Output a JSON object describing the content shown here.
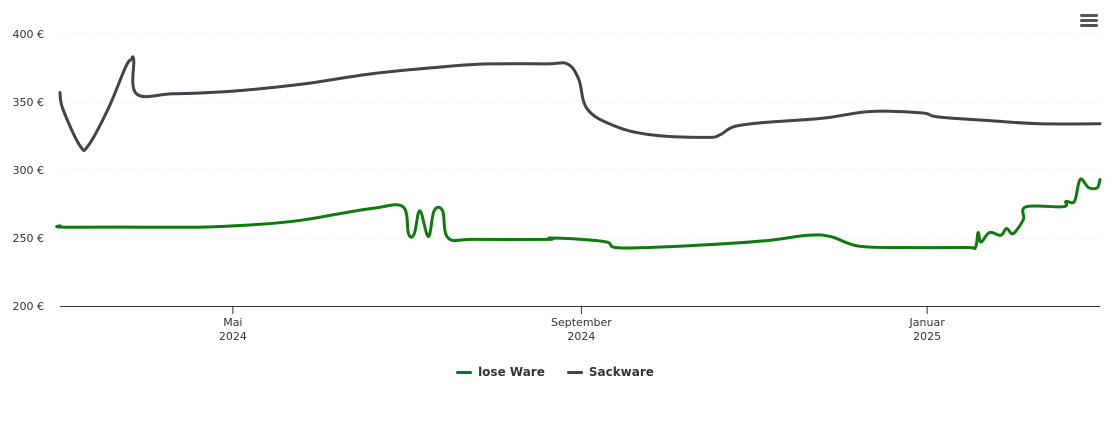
{
  "chart_data": {
    "type": "line",
    "title": "",
    "xlabel": "",
    "ylabel": "",
    "ylim": [
      200,
      400
    ],
    "y_ticks": [
      "200 €",
      "250 €",
      "300 €",
      "350 €",
      "400 €"
    ],
    "x_ticks": [
      {
        "date": "2024-05-01",
        "month": "Mai",
        "year": "2024"
      },
      {
        "date": "2024-09-01",
        "month": "September",
        "year": "2024"
      },
      {
        "date": "2025-01-01",
        "month": "Januar",
        "year": "2025"
      }
    ],
    "xlim": [
      "2024-03-01",
      "2025-03-03"
    ],
    "grid": true,
    "legend_position": "bottom-center",
    "series": [
      {
        "name": "lose Ware",
        "color": "#0f7a0f",
        "points": [
          [
            "2024-03-01",
            259
          ],
          [
            "2024-03-02",
            258
          ],
          [
            "2024-03-25",
            258
          ],
          [
            "2024-04-20",
            258
          ],
          [
            "2024-05-10",
            260
          ],
          [
            "2024-05-25",
            263
          ],
          [
            "2024-06-08",
            268
          ],
          [
            "2024-06-20",
            272
          ],
          [
            "2024-06-30",
            273
          ],
          [
            "2024-07-02",
            253
          ],
          [
            "2024-07-04",
            253
          ],
          [
            "2024-07-06",
            270
          ],
          [
            "2024-07-09",
            251
          ],
          [
            "2024-07-11",
            270
          ],
          [
            "2024-07-14",
            270
          ],
          [
            "2024-07-16",
            250
          ],
          [
            "2024-07-25",
            249
          ],
          [
            "2024-08-20",
            249
          ],
          [
            "2024-08-21",
            250
          ],
          [
            "2024-09-01",
            249
          ],
          [
            "2024-09-10",
            247
          ],
          [
            "2024-09-13",
            243
          ],
          [
            "2024-09-25",
            243
          ],
          [
            "2024-10-15",
            245
          ],
          [
            "2024-11-05",
            248
          ],
          [
            "2024-11-20",
            252
          ],
          [
            "2024-11-28",
            251
          ],
          [
            "2024-12-08",
            244
          ],
          [
            "2024-12-25",
            243
          ],
          [
            "2025-01-15",
            243
          ],
          [
            "2025-01-18",
            243
          ],
          [
            "2025-01-19",
            254
          ],
          [
            "2025-01-20",
            247
          ],
          [
            "2025-01-23",
            254
          ],
          [
            "2025-01-27",
            252
          ],
          [
            "2025-01-29",
            257
          ],
          [
            "2025-01-31",
            253
          ],
          [
            "2025-02-02",
            257
          ],
          [
            "2025-02-04",
            264
          ],
          [
            "2025-02-05",
            273
          ],
          [
            "2025-02-18",
            273
          ],
          [
            "2025-02-19",
            277
          ],
          [
            "2025-02-22",
            277
          ],
          [
            "2025-02-24",
            293
          ],
          [
            "2025-02-27",
            287
          ],
          [
            "2025-03-02",
            287
          ],
          [
            "2025-03-03",
            293
          ]
        ]
      },
      {
        "name": "Sackware",
        "color": "#434348",
        "points": [
          [
            "2024-03-01",
            357
          ],
          [
            "2024-03-02",
            345
          ],
          [
            "2024-03-08",
            318
          ],
          [
            "2024-03-11",
            318
          ],
          [
            "2024-03-18",
            345
          ],
          [
            "2024-03-24",
            375
          ],
          [
            "2024-03-26",
            381
          ],
          [
            "2024-03-27",
            381
          ],
          [
            "2024-03-28",
            356
          ],
          [
            "2024-04-10",
            356
          ],
          [
            "2024-05-01",
            358
          ],
          [
            "2024-05-25",
            363
          ],
          [
            "2024-06-20",
            371
          ],
          [
            "2024-07-15",
            376
          ],
          [
            "2024-07-30",
            378
          ],
          [
            "2024-08-20",
            378
          ],
          [
            "2024-08-27",
            378
          ],
          [
            "2024-08-31",
            367
          ],
          [
            "2024-09-03",
            345
          ],
          [
            "2024-09-12",
            333
          ],
          [
            "2024-09-25",
            326
          ],
          [
            "2024-10-15",
            324
          ],
          [
            "2024-10-20",
            326
          ],
          [
            "2024-10-25",
            332
          ],
          [
            "2024-11-05",
            335
          ],
          [
            "2024-11-25",
            338
          ],
          [
            "2024-12-12",
            343
          ],
          [
            "2024-12-30",
            342
          ],
          [
            "2025-01-05",
            339
          ],
          [
            "2025-01-25",
            336
          ],
          [
            "2025-02-10",
            334
          ],
          [
            "2025-03-03",
            334
          ]
        ]
      }
    ]
  }
}
